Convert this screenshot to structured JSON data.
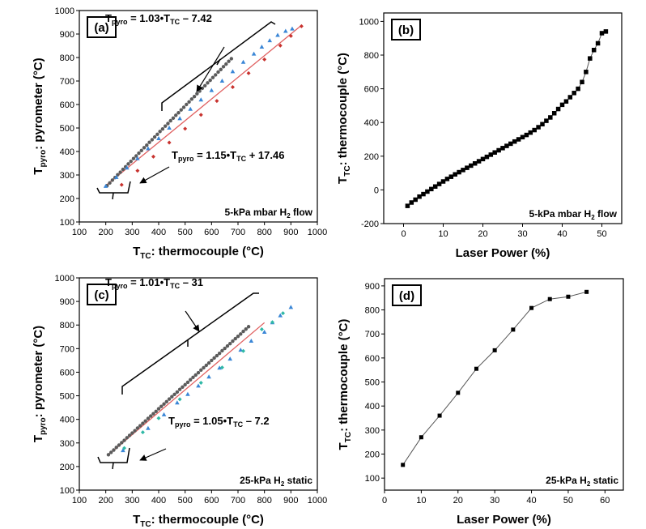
{
  "chart_data": [
    {
      "id": "a",
      "type": "scatter",
      "panel_label": "(a)",
      "xlabel": {
        "main": "T",
        "sub": "TC",
        "rest": ": thermocouple (°C)"
      },
      "ylabel": {
        "main": "T",
        "sub": "pyro",
        "rest": ": pyrometer (°C)"
      },
      "xlim": [
        100,
        1000
      ],
      "ylim": [
        100,
        1000
      ],
      "xticks": [
        100,
        200,
        300,
        400,
        500,
        600,
        700,
        800,
        900,
        1000
      ],
      "yticks": [
        100,
        200,
        300,
        400,
        500,
        600,
        700,
        800,
        900,
        1000
      ],
      "condition": {
        "pre": "5-kPa mbar H",
        "sub": "2",
        "post": " flow"
      },
      "equations": [
        {
          "p1": "T",
          "s1": "pyro",
          "p2": " = 1.03•T",
          "s2": "TC",
          "p3": " – 7.42",
          "at": [
            130,
            27
          ]
        },
        {
          "p1": "T",
          "s1": "pyro",
          "p2": " = 1.15•T",
          "s2": "TC",
          "p3": " + 17.46",
          "at": [
            212,
            196
          ]
        }
      ],
      "fit": {
        "x": [
          195,
          940
        ],
        "y": [
          250,
          937
        ]
      },
      "series": [
        {
          "marker": "circle",
          "color": "#5b5b5b",
          "x": [
            205,
            215,
            225,
            235,
            245,
            255,
            265,
            275,
            285,
            295,
            305,
            315,
            325,
            335,
            345,
            355,
            365,
            375,
            385,
            395,
            405,
            415,
            425,
            435,
            445,
            455,
            465,
            475,
            485,
            495,
            505,
            515,
            525,
            535,
            545,
            555,
            565,
            575,
            585,
            595,
            605,
            615,
            625,
            635,
            645,
            655,
            665,
            675
          ],
          "y": [
            255,
            266,
            278,
            289,
            301,
            312,
            324,
            335,
            347,
            358,
            370,
            381,
            393,
            404,
            416,
            427,
            439,
            450,
            462,
            473,
            485,
            496,
            508,
            519,
            531,
            542,
            554,
            565,
            577,
            588,
            600,
            611,
            623,
            634,
            646,
            657,
            669,
            680,
            692,
            703,
            715,
            726,
            738,
            749,
            761,
            772,
            784,
            795
          ]
        },
        {
          "marker": "triangle",
          "color": "#3a86d6",
          "x": [
            200,
            240,
            280,
            320,
            360,
            400,
            440,
            480,
            520,
            560,
            600,
            640,
            680,
            720,
            760,
            790,
            820,
            850,
            880,
            905
          ],
          "y": [
            252,
            290,
            330,
            370,
            412,
            455,
            500,
            540,
            580,
            620,
            660,
            700,
            740,
            780,
            815,
            845,
            872,
            895,
            912,
            922
          ]
        },
        {
          "marker": "diamond",
          "color": "#c8322e",
          "x": [
            260,
            320,
            380,
            440,
            500,
            560,
            620,
            680,
            740,
            800,
            860,
            900,
            940
          ],
          "y": [
            258,
            318,
            378,
            438,
            497,
            556,
            615,
            674,
            733,
            792,
            851,
            892,
            933
          ]
        }
      ]
    },
    {
      "id": "b",
      "type": "line",
      "panel_label": "(b)",
      "xlabel": "Laser Power (%)",
      "ylabel": {
        "main": "T",
        "sub": "TC",
        "rest": ": thermocouple (°C)"
      },
      "xlim": [
        -5,
        55
      ],
      "ylim": [
        -200,
        1050
      ],
      "xticks": [
        0,
        10,
        20,
        30,
        40,
        50
      ],
      "yticks": [
        -200,
        0,
        200,
        400,
        600,
        800,
        1000
      ],
      "condition": {
        "pre": "5-kPa mbar H",
        "sub": "2",
        "post": " flow"
      },
      "series": [
        {
          "marker": "square",
          "color": "#000000",
          "x": [
            1,
            2,
            3,
            4,
            5,
            6,
            7,
            8,
            9,
            10,
            11,
            12,
            13,
            14,
            15,
            16,
            17,
            18,
            19,
            20,
            21,
            22,
            23,
            24,
            25,
            26,
            27,
            28,
            29,
            30,
            31,
            32,
            33,
            34,
            35,
            36,
            37,
            38,
            39,
            40,
            41,
            42,
            43,
            44,
            45,
            46,
            47,
            48,
            49,
            50,
            51
          ],
          "y": [
            -95,
            -75,
            -58,
            -40,
            -25,
            -10,
            5,
            20,
            35,
            50,
            65,
            78,
            92,
            105,
            118,
            131,
            144,
            157,
            170,
            183,
            196,
            209,
            222,
            235,
            248,
            261,
            274,
            287,
            300,
            313,
            326,
            340,
            355,
            372,
            390,
            410,
            430,
            455,
            480,
            505,
            525,
            550,
            575,
            600,
            640,
            700,
            780,
            830,
            870,
            930,
            940
          ]
        }
      ]
    },
    {
      "id": "c",
      "type": "scatter",
      "panel_label": "(c)",
      "xlabel": {
        "main": "T",
        "sub": "TC",
        "rest": ": thermocouple (°C)"
      },
      "ylabel": {
        "main": "T",
        "sub": "pyro",
        "rest": ": pyrometer (°C)"
      },
      "xlim": [
        100,
        1000
      ],
      "ylim": [
        100,
        1000
      ],
      "xticks": [
        100,
        200,
        300,
        400,
        500,
        600,
        700,
        800,
        900,
        1000
      ],
      "yticks": [
        100,
        200,
        300,
        400,
        500,
        600,
        700,
        800,
        900,
        1000
      ],
      "condition": {
        "pre": "25-kPa H",
        "sub": "2",
        "post": " static"
      },
      "equations": [
        {
          "p1": "T",
          "s1": "pyro",
          "p2": " = 1.01•T",
          "s2": "TC",
          "p3": " – 31",
          "at": [
            130,
            353
          ]
        },
        {
          "p1": "T",
          "s1": "pyro",
          "p2": " = 1.05•T",
          "s2": "TC",
          "p3": " – 7.2",
          "at": [
            208,
            524
          ]
        }
      ],
      "fit": {
        "x": [
          210,
          800
        ],
        "y": [
          250,
          810
        ]
      },
      "series": [
        {
          "marker": "circle",
          "color": "#5b5b5b",
          "x": [
            210,
            220,
            230,
            240,
            250,
            260,
            270,
            280,
            290,
            300,
            310,
            320,
            330,
            340,
            350,
            360,
            370,
            380,
            390,
            400,
            410,
            420,
            430,
            440,
            450,
            460,
            470,
            480,
            490,
            500,
            510,
            520,
            530,
            540,
            550,
            560,
            570,
            580,
            590,
            600,
            610,
            620,
            630,
            640,
            650,
            660,
            670,
            680,
            690,
            700,
            710,
            720,
            730,
            740
          ],
          "y": [
            250,
            260,
            270,
            281,
            291,
            301,
            311,
            322,
            332,
            342,
            352,
            363,
            373,
            383,
            393,
            404,
            414,
            424,
            434,
            445,
            455,
            465,
            475,
            486,
            496,
            506,
            516,
            527,
            537,
            547,
            557,
            568,
            578,
            588,
            598,
            609,
            619,
            629,
            639,
            650,
            660,
            670,
            680,
            691,
            701,
            711,
            721,
            732,
            742,
            752,
            762,
            773,
            783,
            793
          ]
        },
        {
          "marker": "triangle",
          "color": "#3a86d6",
          "x": [
            265,
            360,
            420,
            470,
            510,
            550,
            590,
            630,
            670,
            710,
            750,
            800,
            830,
            860,
            900
          ],
          "y": [
            268,
            362,
            420,
            470,
            506,
            542,
            580,
            618,
            656,
            694,
            732,
            770,
            810,
            840,
            875
          ]
        },
        {
          "marker": "diamond",
          "color": "#2fb8a6",
          "x": [
            270,
            340,
            400,
            480,
            560,
            640,
            720,
            790,
            830,
            870
          ],
          "y": [
            278,
            345,
            405,
            485,
            555,
            620,
            690,
            782,
            812,
            850
          ]
        }
      ]
    },
    {
      "id": "d",
      "type": "line",
      "panel_label": "(d)",
      "xlabel": "Laser Power (%)",
      "ylabel": {
        "main": "T",
        "sub": "TC",
        "rest": ": thermocouple (°C)"
      },
      "xlim": [
        0,
        65
      ],
      "ylim": [
        50,
        930
      ],
      "xticks": [
        0,
        10,
        20,
        30,
        40,
        50,
        60
      ],
      "yticks": [
        100,
        200,
        300,
        400,
        500,
        600,
        700,
        800,
        900
      ],
      "condition": {
        "pre": "25-kPa H",
        "sub": "2",
        "post": " static"
      },
      "series": [
        {
          "marker": "square",
          "color": "#000000",
          "x": [
            5,
            10,
            15,
            20,
            25,
            30,
            35,
            40,
            45,
            50,
            55
          ],
          "y": [
            155,
            270,
            360,
            455,
            555,
            632,
            718,
            808,
            845,
            855,
            875
          ]
        }
      ]
    }
  ]
}
